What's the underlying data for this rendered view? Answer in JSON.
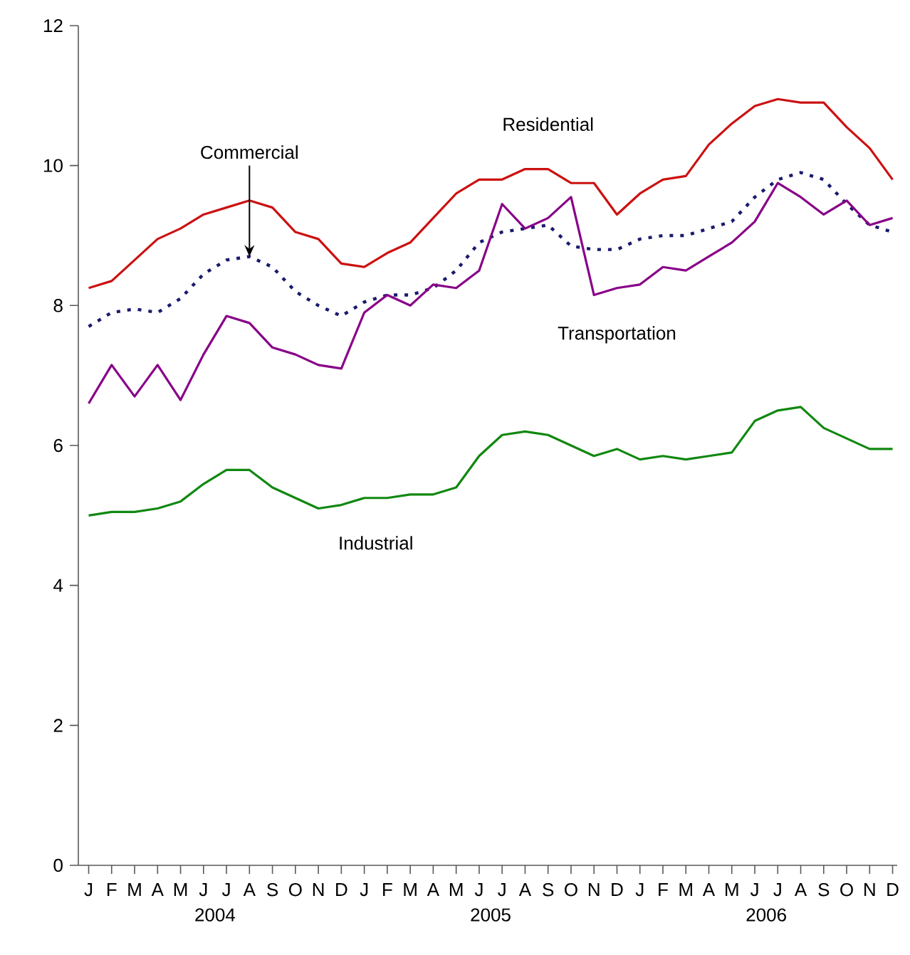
{
  "chart_data": {
    "type": "line",
    "categories": [
      "J",
      "F",
      "M",
      "A",
      "M",
      "J",
      "J",
      "A",
      "S",
      "O",
      "N",
      "D",
      "J",
      "F",
      "M",
      "A",
      "M",
      "J",
      "J",
      "A",
      "S",
      "O",
      "N",
      "D",
      "J",
      "F",
      "M",
      "A",
      "M",
      "J",
      "J",
      "A",
      "S",
      "O",
      "N",
      "D"
    ],
    "ylim": [
      0,
      12
    ],
    "yticks": [
      0,
      2,
      4,
      6,
      8,
      10,
      12
    ],
    "annotations": [
      "2004",
      "2005",
      "2006"
    ],
    "series": [
      {
        "name": "Residential",
        "color": "#cc1111",
        "values": [
          8.25,
          8.35,
          8.65,
          8.95,
          9.1,
          9.3,
          9.4,
          9.5,
          9.4,
          9.05,
          8.95,
          8.6,
          8.55,
          8.75,
          8.9,
          9.25,
          9.6,
          9.8,
          9.8,
          9.95,
          9.95,
          9.75,
          9.75,
          9.3,
          9.6,
          9.8,
          9.85,
          10.3,
          10.6,
          10.85,
          10.95,
          10.9,
          10.9,
          10.55,
          10.25,
          9.8
        ]
      },
      {
        "name": "Commercial",
        "color": "#1a1a6e",
        "line_style": "dotted",
        "values": [
          7.7,
          7.9,
          7.95,
          7.9,
          8.1,
          8.45,
          8.65,
          8.7,
          8.55,
          8.2,
          8.0,
          7.85,
          8.05,
          8.15,
          8.15,
          8.25,
          8.5,
          8.9,
          9.05,
          9.1,
          9.15,
          8.85,
          8.8,
          8.8,
          8.95,
          9.0,
          9.0,
          9.1,
          9.2,
          9.55,
          9.8,
          9.9,
          9.8,
          9.45,
          9.15,
          9.05
        ]
      },
      {
        "name": "Transportation",
        "color": "#880088",
        "values": [
          6.6,
          7.15,
          6.7,
          7.15,
          6.65,
          7.3,
          7.85,
          7.75,
          7.4,
          7.3,
          7.15,
          7.1,
          7.9,
          8.15,
          8.0,
          8.3,
          8.25,
          8.5,
          9.45,
          9.1,
          9.25,
          9.55,
          8.15,
          8.25,
          8.3,
          8.55,
          8.5,
          8.7,
          8.9,
          9.2,
          9.75,
          9.55,
          9.3,
          9.5,
          9.15,
          9.25
        ]
      },
      {
        "name": "Industrial",
        "color": "#118811",
        "values": [
          5.0,
          5.05,
          5.05,
          5.1,
          5.2,
          5.45,
          5.65,
          5.65,
          5.4,
          5.25,
          5.1,
          5.15,
          5.25,
          5.25,
          5.3,
          5.3,
          5.4,
          5.85,
          6.15,
          6.2,
          6.15,
          6.0,
          5.85,
          5.95,
          5.8,
          5.85,
          5.8,
          5.85,
          5.9,
          6.35,
          6.5,
          6.55,
          6.25,
          6.1,
          5.95,
          5.95
        ]
      }
    ]
  }
}
